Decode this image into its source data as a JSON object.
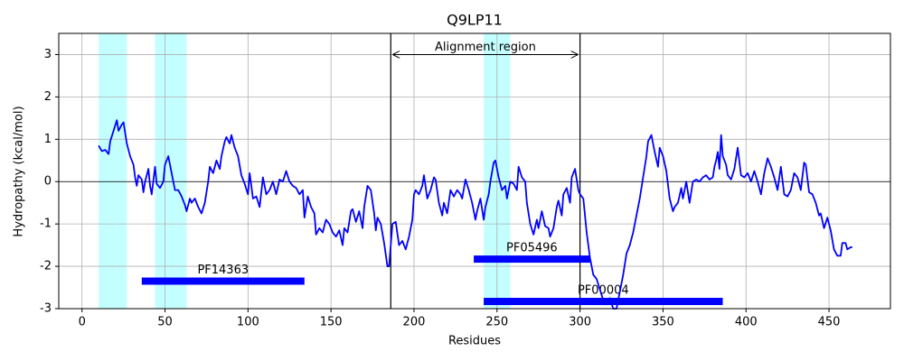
{
  "chart_data": {
    "type": "line",
    "title": "Q9LP11",
    "x_label": "Residues",
    "y_label": "Hydropathy (kcal/mol)",
    "xlim": [
      -14,
      487
    ],
    "ylim": [
      -3,
      3.5
    ],
    "xticks": [
      0,
      50,
      100,
      150,
      200,
      250,
      300,
      350,
      400,
      450
    ],
    "yticks": [
      -3,
      -2,
      -1,
      0,
      1,
      2,
      3
    ],
    "grid": true,
    "spans": [
      [
        10,
        27
      ],
      [
        44,
        63
      ],
      [
        242,
        258
      ]
    ],
    "span_color": "#c4ffff",
    "vlines": [
      186,
      300
    ],
    "hline": 0,
    "annotation": {
      "text": "Alignment region",
      "x": [
        186,
        300
      ],
      "y": 3
    },
    "domains": [
      {
        "label": "PF14363",
        "start": 36,
        "end": 134,
        "y": -2.35
      },
      {
        "label": "PF05496",
        "start": 236,
        "end": 306,
        "y": -1.83
      },
      {
        "label": "PF00004",
        "start": 242,
        "end": 386,
        "y": -2.83
      }
    ],
    "domain_color": "#0000ff",
    "color": "#0000ff",
    "x": [
      10,
      12,
      14,
      16,
      17,
      19,
      21,
      22,
      24,
      25,
      27,
      29,
      31,
      32,
      33,
      34,
      36,
      37,
      38,
      40,
      41,
      42,
      44,
      45,
      47,
      49,
      50,
      52,
      54,
      56,
      58,
      60,
      62,
      63,
      65,
      66,
      68,
      70,
      72,
      74,
      76,
      77,
      79,
      81,
      83,
      84,
      86,
      87,
      89,
      90,
      92,
      94,
      96,
      98,
      100,
      101,
      103,
      105,
      107,
      109,
      111,
      113,
      115,
      117,
      119,
      121,
      123,
      125,
      127,
      129,
      131,
      133,
      134,
      136,
      138,
      140,
      141,
      143,
      145,
      147,
      149,
      151,
      153,
      155,
      157,
      158,
      160,
      162,
      163,
      165,
      167,
      169,
      170,
      172,
      174,
      176,
      177,
      178,
      180,
      182,
      184,
      185,
      187,
      189,
      191,
      193,
      195,
      197,
      199,
      200,
      201,
      203,
      205,
      206,
      208,
      210,
      212,
      213,
      215,
      217,
      218,
      220,
      222,
      224,
      226,
      228,
      229,
      231,
      233,
      235,
      237,
      238,
      240,
      242,
      243,
      245,
      246,
      248,
      249,
      251,
      253,
      255,
      256,
      258,
      260,
      262,
      263,
      265,
      267,
      268,
      270,
      272,
      274,
      275,
      277,
      279,
      281,
      282,
      284,
      286,
      287,
      289,
      290,
      292,
      294,
      295,
      297,
      299,
      300,
      302,
      304,
      306,
      308,
      310,
      312,
      314,
      316,
      318,
      320,
      322,
      324,
      326,
      328,
      330,
      332,
      334,
      336,
      338,
      340,
      341,
      343,
      345,
      347,
      348,
      350,
      352,
      354,
      356,
      357,
      359,
      361,
      362,
      364,
      366,
      368,
      370,
      372,
      374,
      376,
      378,
      380,
      381,
      382,
      383,
      384,
      385,
      386,
      388,
      389,
      391,
      393,
      395,
      397,
      399,
      401,
      403,
      405,
      407,
      409,
      411,
      413,
      415,
      417,
      419,
      421,
      423,
      425,
      427,
      429,
      431,
      433,
      435,
      436,
      438,
      440,
      442,
      444,
      445,
      447,
      449,
      451,
      453,
      455,
      457,
      458,
      460,
      461,
      463,
      464
    ],
    "values": [
      0.85,
      0.72,
      0.75,
      0.65,
      0.95,
      1.2,
      1.45,
      1.2,
      1.35,
      1.4,
      0.9,
      0.6,
      0.4,
      0.1,
      -0.1,
      0.15,
      0.05,
      -0.25,
      0.0,
      0.3,
      -0.1,
      -0.3,
      0.35,
      -0.05,
      -0.15,
      0.0,
      0.4,
      0.6,
      0.2,
      -0.2,
      -0.2,
      -0.35,
      -0.55,
      -0.7,
      -0.4,
      -0.5,
      -0.4,
      -0.6,
      -0.75,
      -0.5,
      0.0,
      0.35,
      0.2,
      0.5,
      0.3,
      0.6,
      0.95,
      1.05,
      0.9,
      1.1,
      0.8,
      0.6,
      0.15,
      -0.05,
      -0.3,
      0.2,
      -0.4,
      -0.35,
      -0.6,
      0.1,
      -0.3,
      -0.2,
      0.0,
      -0.3,
      0.05,
      0.0,
      0.25,
      0.0,
      -0.1,
      -0.15,
      -0.3,
      -0.2,
      -0.85,
      -0.35,
      -0.6,
      -0.75,
      -1.25,
      -1.1,
      -1.2,
      -0.9,
      -1.0,
      -1.2,
      -1.3,
      -1.15,
      -1.5,
      -1.1,
      -1.2,
      -0.7,
      -0.65,
      -0.95,
      -0.7,
      -1.1,
      -0.6,
      -0.1,
      -0.2,
      -0.75,
      -1.15,
      -0.85,
      -1.0,
      -1.45,
      -2.0,
      -2.0,
      -1.0,
      -0.95,
      -1.5,
      -1.4,
      -1.6,
      -1.3,
      -0.9,
      -0.3,
      -0.2,
      -0.3,
      -0.1,
      0.15,
      -0.4,
      -0.2,
      0.1,
      0.05,
      -0.5,
      -0.8,
      -0.5,
      -0.75,
      -0.2,
      -0.35,
      -0.2,
      -0.3,
      -0.4,
      0.05,
      -0.2,
      -0.5,
      -0.9,
      -0.7,
      -0.4,
      -0.9,
      -0.6,
      -0.3,
      0.0,
      0.45,
      0.5,
      0.1,
      -0.2,
      -0.1,
      -0.4,
      0.0,
      -0.05,
      -0.2,
      0.35,
      0.1,
      0.0,
      -0.5,
      -1.0,
      -1.25,
      -0.9,
      -1.1,
      -0.7,
      -1.05,
      -1.1,
      -1.3,
      -1.1,
      -0.6,
      -0.45,
      -0.8,
      -0.3,
      -0.15,
      -0.5,
      0.1,
      0.3,
      -0.2,
      -0.3,
      -0.4,
      -1.2,
      -1.8,
      -2.2,
      -2.3,
      -2.55,
      -2.8,
      -2.9,
      -2.75,
      -3.0,
      -3.0,
      -2.6,
      -2.2,
      -1.7,
      -1.5,
      -1.2,
      -0.8,
      -0.4,
      0.1,
      0.6,
      0.95,
      1.1,
      0.7,
      0.35,
      0.8,
      0.6,
      0.25,
      -0.4,
      -0.7,
      -0.6,
      -0.5,
      -0.15,
      -0.4,
      0.0,
      -0.5,
      0.0,
      0.05,
      0.0,
      0.1,
      0.15,
      0.05,
      0.1,
      0.35,
      0.5,
      0.7,
      0.3,
      1.1,
      0.6,
      0.4,
      0.15,
      0.05,
      0.3,
      0.8,
      0.15,
      0.1,
      0.2,
      0.0,
      0.25,
      0.0,
      -0.3,
      0.2,
      0.55,
      0.35,
      0.1,
      -0.2,
      0.35,
      -0.3,
      -0.35,
      -0.2,
      0.2,
      0.1,
      -0.2,
      0.45,
      0.4,
      -0.25,
      -0.3,
      -0.5,
      -0.8,
      -0.75,
      -1.1,
      -0.85,
      -1.15,
      -1.6,
      -1.75,
      -1.75,
      -1.45,
      -1.45,
      -1.6,
      -1.55,
      -1.55
    ]
  }
}
